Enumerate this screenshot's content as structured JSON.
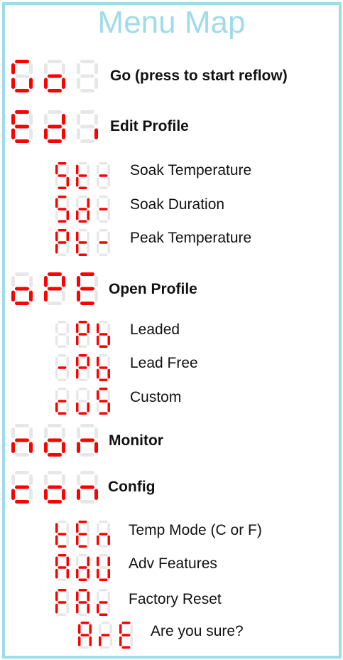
{
  "title": "Menu Map",
  "colors": {
    "segment_on": "#ff0000",
    "segment_off": "#e7e7e7",
    "frame": "#9fdbe8",
    "title": "#9fdbe8"
  },
  "entries": [
    {
      "display": "Go ",
      "label": "Go (press to start reflow)",
      "level": 0
    },
    {
      "display": "Edi",
      "label": "Edit Profile",
      "level": 0
    },
    {
      "display": "St-",
      "label": "Soak Temperature",
      "level": 1
    },
    {
      "display": "Sd-",
      "label": "Soak Duration",
      "level": 1
    },
    {
      "display": "Pt-",
      "label": "Peak Temperature",
      "level": 1
    },
    {
      "display": "oPE",
      "label": "Open Profile",
      "level": 0
    },
    {
      "display": " Pb",
      "label": "Leaded",
      "level": 1
    },
    {
      "display": "-Pb",
      "label": "Lead Free",
      "level": 1
    },
    {
      "display": "cuS",
      "label": "Custom",
      "level": 1
    },
    {
      "display": "non",
      "label": "Monitor",
      "level": 0
    },
    {
      "display": "con",
      "label": "Config",
      "level": 0
    },
    {
      "display": "tEn",
      "label": "Temp Mode (C or F)",
      "level": 1
    },
    {
      "display": "AdU",
      "label": "Adv Features",
      "level": 1
    },
    {
      "display": "FAc",
      "label": "Factory Reset",
      "level": 1
    },
    {
      "display": "ArE",
      "label": "Are you sure?",
      "level": 2
    }
  ]
}
